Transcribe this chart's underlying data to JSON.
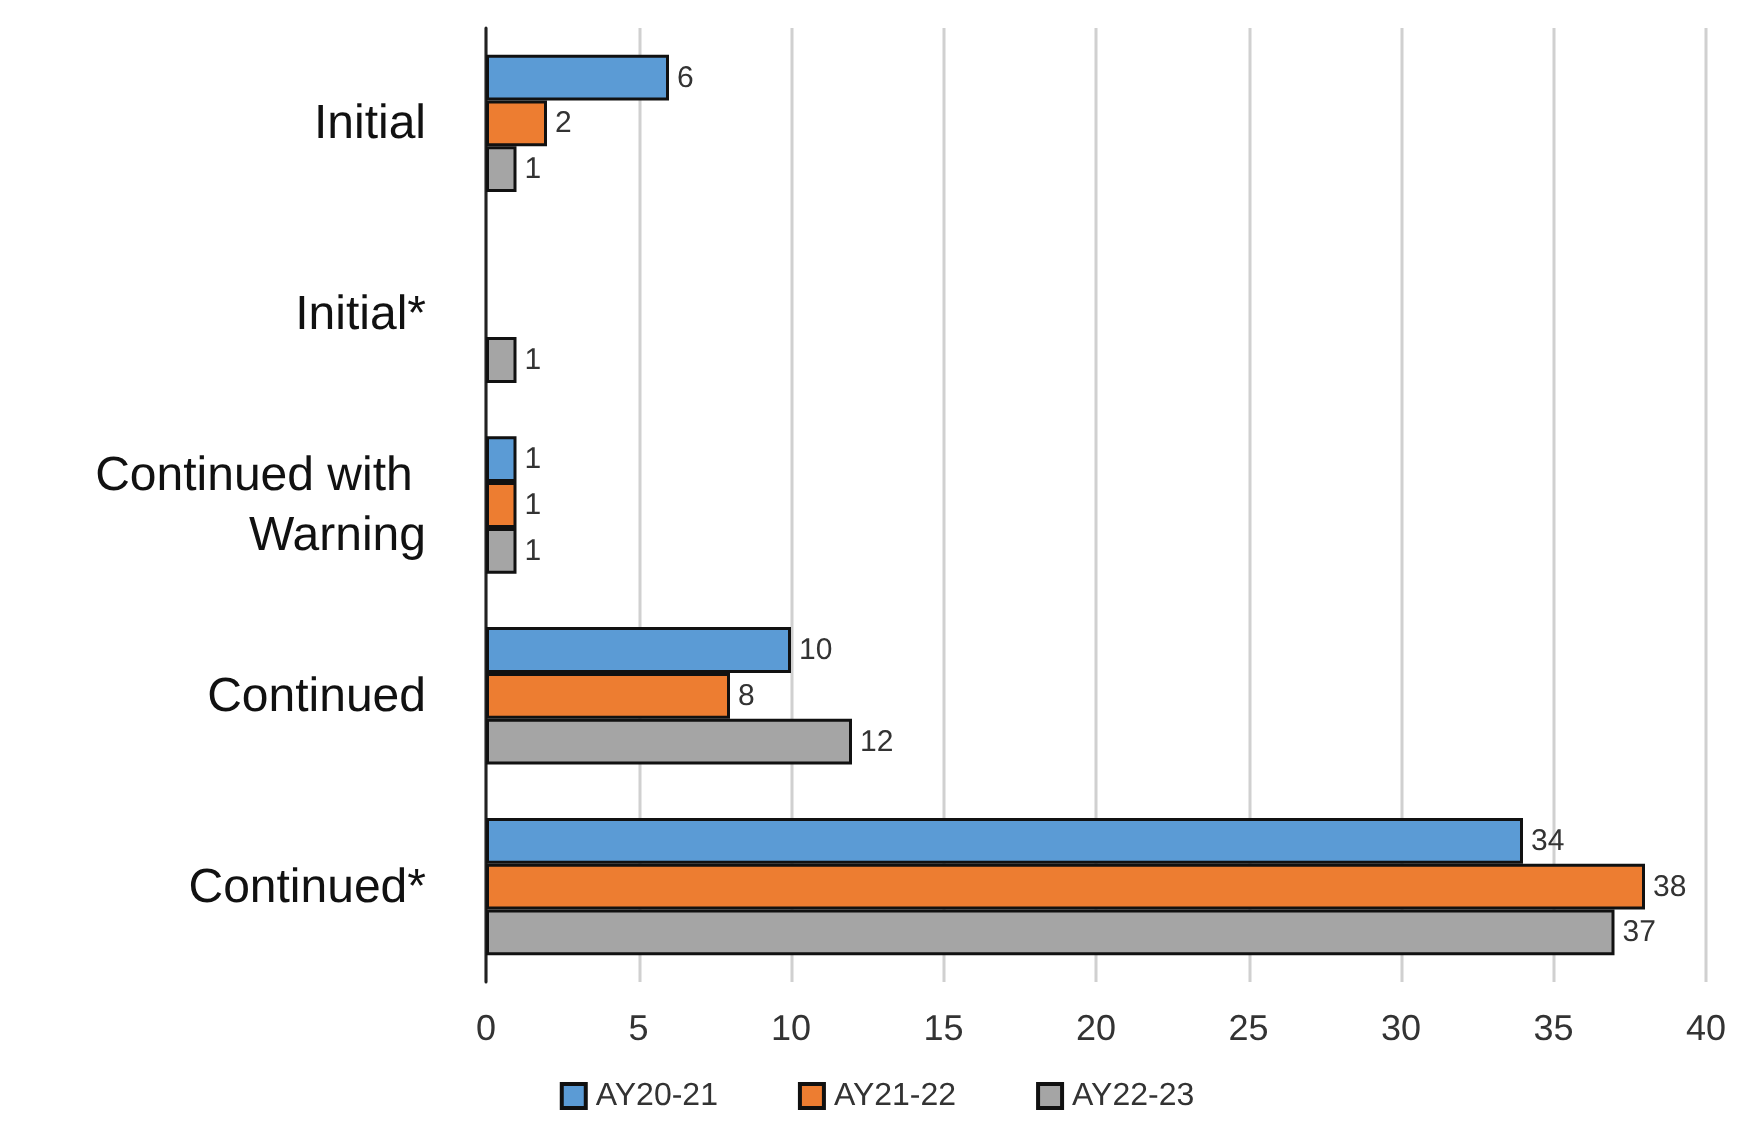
{
  "chart_data": {
    "type": "bar",
    "orientation": "horizontal",
    "categories": [
      "Initial",
      "Initial*",
      "Continued with Warning",
      "Continued",
      "Continued*"
    ],
    "series": [
      {
        "name": "AY20-21",
        "color": "#5b9bd5",
        "values": [
          6,
          null,
          1,
          10,
          34
        ]
      },
      {
        "name": "AY21-22",
        "color": "#ed7d31",
        "values": [
          2,
          null,
          1,
          8,
          38
        ]
      },
      {
        "name": "AY22-23",
        "color": "#a5a5a5",
        "values": [
          1,
          1,
          1,
          12,
          37
        ]
      }
    ],
    "xlim": [
      0,
      40
    ],
    "xticks": [
      0,
      5,
      10,
      15,
      20,
      25,
      30,
      35,
      40
    ],
    "grid": "x",
    "legend": "bottom",
    "data_labels": true
  }
}
